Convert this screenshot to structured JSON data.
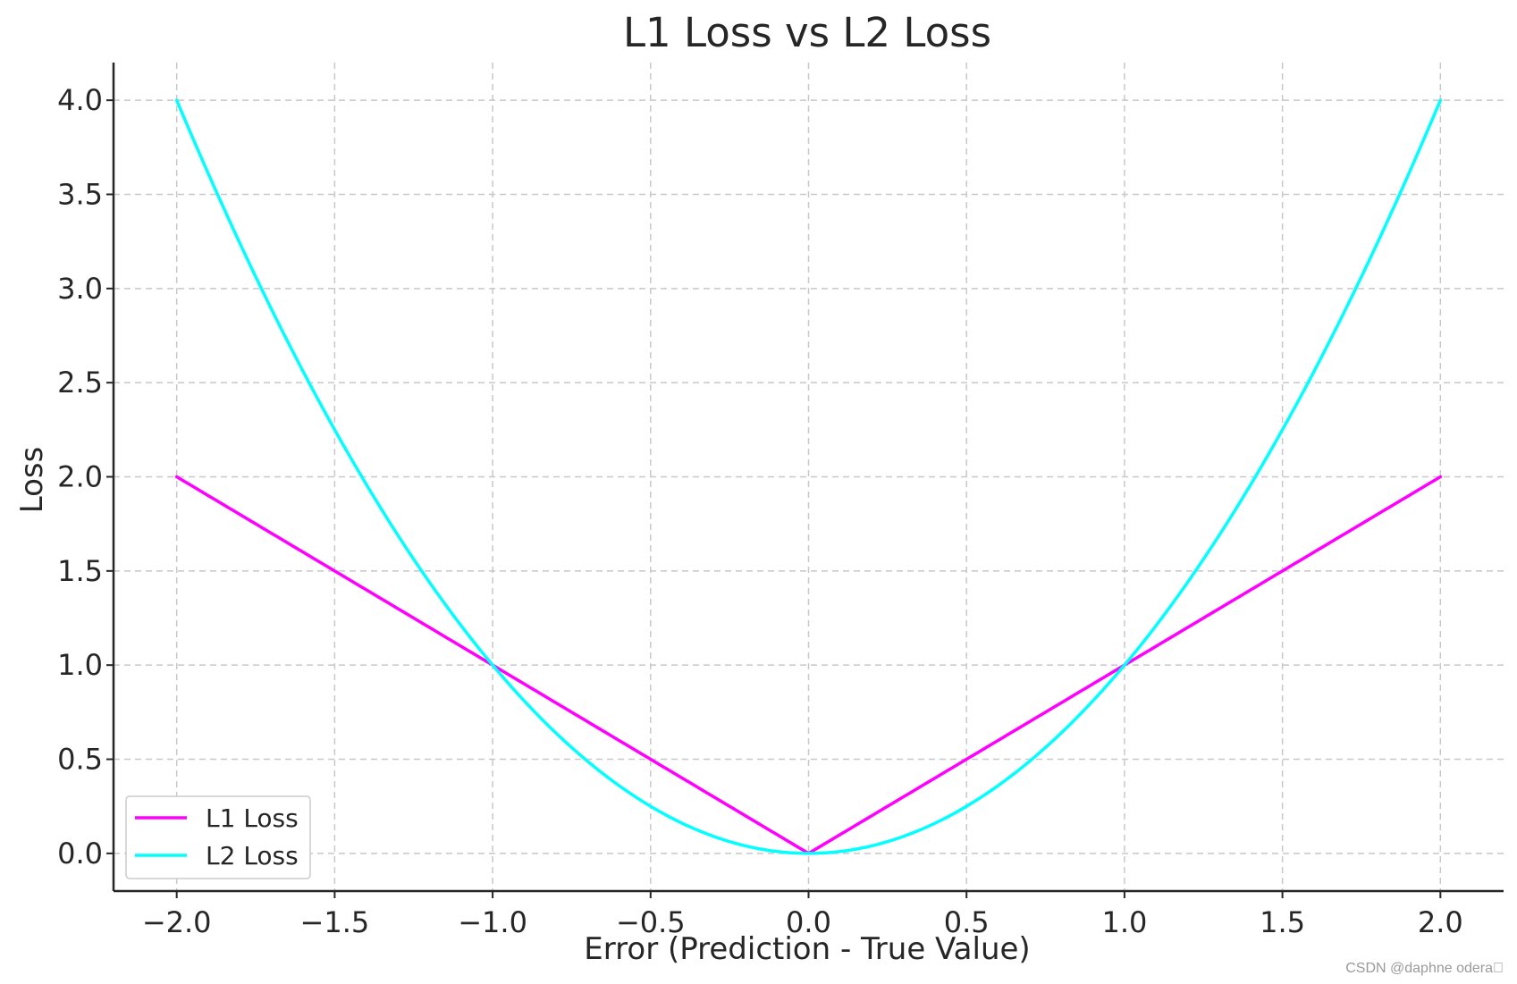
{
  "chart_data": {
    "type": "line",
    "title": "L1 Loss vs L2 Loss",
    "xlabel": "Error (Prediction - True Value)",
    "ylabel": "Loss",
    "xlim": [
      -2.2,
      2.2
    ],
    "ylim": [
      -0.2,
      4.2
    ],
    "xticks": [
      -2.0,
      -1.5,
      -1.0,
      -0.5,
      0.0,
      0.5,
      1.0,
      1.5,
      2.0
    ],
    "xtick_labels": [
      "−2.0",
      "−1.5",
      "−1.0",
      "−0.5",
      "0.0",
      "0.5",
      "1.0",
      "1.5",
      "2.0"
    ],
    "yticks": [
      0.0,
      0.5,
      1.0,
      1.5,
      2.0,
      2.5,
      3.0,
      3.5,
      4.0
    ],
    "ytick_labels": [
      "0.0",
      "0.5",
      "1.0",
      "1.5",
      "2.0",
      "2.5",
      "3.0",
      "3.5",
      "4.0"
    ],
    "grid": true,
    "legend_position": "lower-left",
    "x": [
      -2.0,
      -1.75,
      -1.5,
      -1.25,
      -1.0,
      -0.75,
      -0.5,
      -0.25,
      0.0,
      0.25,
      0.5,
      0.75,
      1.0,
      1.25,
      1.5,
      1.75,
      2.0
    ],
    "series": [
      {
        "name": "L1 Loss",
        "color": "#ff00ff",
        "values": [
          2.0,
          1.75,
          1.5,
          1.25,
          1.0,
          0.75,
          0.5,
          0.25,
          0.0,
          0.25,
          0.5,
          0.75,
          1.0,
          1.25,
          1.5,
          1.75,
          2.0
        ]
      },
      {
        "name": "L2 Loss",
        "color": "#00ffff",
        "values": [
          4.0,
          3.0625,
          2.25,
          1.5625,
          1.0,
          0.5625,
          0.25,
          0.0625,
          0.0,
          0.0625,
          0.25,
          0.5625,
          1.0,
          1.5625,
          2.25,
          3.0625,
          4.0
        ]
      }
    ]
  },
  "watermark": "CSDN @daphne odera\u0000"
}
